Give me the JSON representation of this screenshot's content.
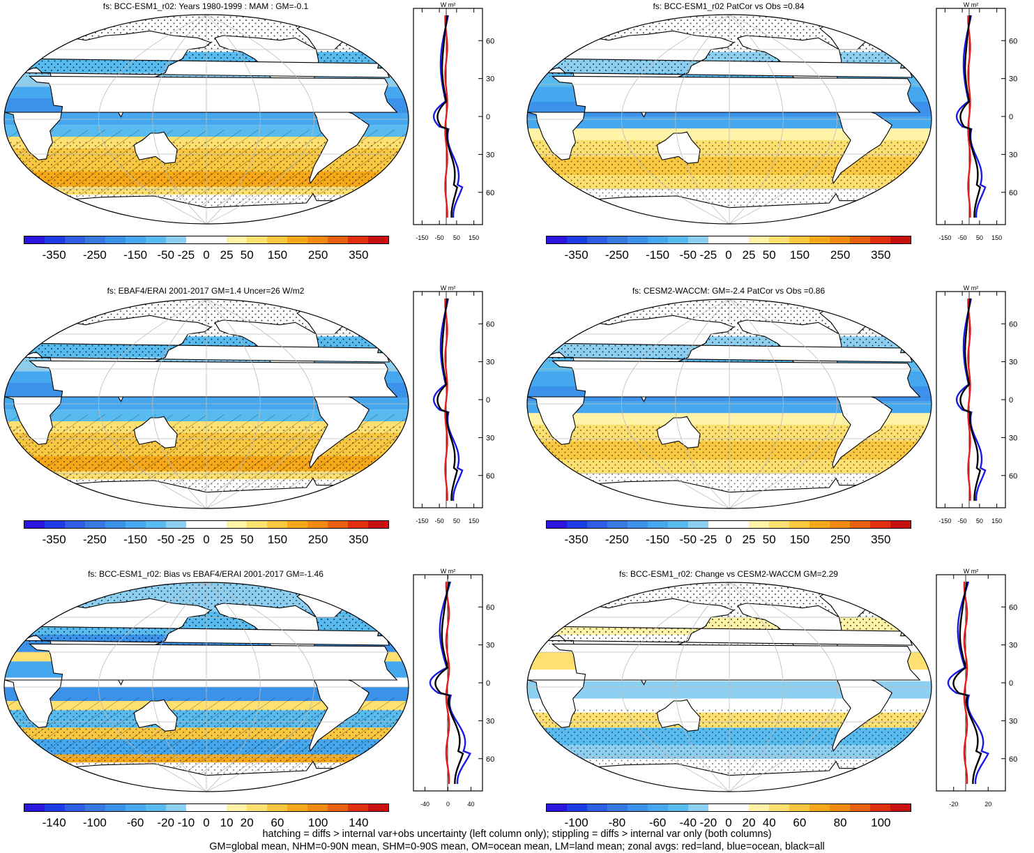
{
  "palettes": {
    "main": [
      "#2b16e0",
      "#1c3ce8",
      "#2f5ee6",
      "#3878e2",
      "#3c92e8",
      "#45a8ee",
      "#58bbf0",
      "#8ccff0",
      "#ffffff",
      "#ffffff",
      "#fff3a8",
      "#fde070",
      "#f9c840",
      "#f6a818",
      "#f08a10",
      "#e86010",
      "#e03010",
      "#c81010"
    ],
    "diff": [
      "#2b16e0",
      "#1c3ce8",
      "#2f5ee6",
      "#3878e2",
      "#3c92e8",
      "#45a8ee",
      "#58bbf0",
      "#8ccff0",
      "#ffffff",
      "#ffffff",
      "#fff3a8",
      "#fde070",
      "#f9c840",
      "#f6a818",
      "#f08a10",
      "#e86010",
      "#e03010",
      "#c81010"
    ]
  },
  "panels": [
    {
      "id": "p1",
      "title": "fs: BCC-ESM1_r02: Years 1980-1999 : MAM : GM=-0.1",
      "cbar_labels": [
        "-350",
        "-250",
        "-150",
        "-50",
        "-25",
        "0",
        "25",
        "50",
        "150",
        "250",
        "350"
      ],
      "zonal_xticks": [
        "-150",
        "-50",
        "50",
        "150"
      ],
      "zonal_yticks": [
        "60N",
        "30N",
        "0",
        "30S",
        "60S"
      ],
      "units": "W m²"
    },
    {
      "id": "p2",
      "title": "fs: BCC-ESM1_r02 PatCor vs Obs =0.84",
      "cbar_labels": [
        "-350",
        "-250",
        "-150",
        "-50",
        "-25",
        "0",
        "25",
        "50",
        "150",
        "250",
        "350"
      ],
      "zonal_xticks": [
        "-150",
        "-50",
        "50",
        "150"
      ],
      "zonal_yticks": [
        "60N",
        "30N",
        "0",
        "30S",
        "60S"
      ],
      "units": "W m²"
    },
    {
      "id": "p3",
      "title": "fs: EBAF4/ERAI 2001-2017 GM=1.4 Uncer=26 W/m2",
      "cbar_labels": [
        "-350",
        "-250",
        "-150",
        "-50",
        "-25",
        "0",
        "25",
        "50",
        "150",
        "250",
        "350"
      ],
      "zonal_xticks": [
        "-150",
        "-50",
        "50",
        "150"
      ],
      "zonal_yticks": [
        "60N",
        "30N",
        "0",
        "30S",
        "60S"
      ],
      "units": "W m²"
    },
    {
      "id": "p4",
      "title": "fs: CESM2-WACCM: GM=-2.4 PatCor vs Obs =0.86",
      "cbar_labels": [
        "-350",
        "-250",
        "-150",
        "-50",
        "-25",
        "0",
        "25",
        "50",
        "150",
        "250",
        "350"
      ],
      "zonal_xticks": [
        "-150",
        "-50",
        "50",
        "150"
      ],
      "zonal_yticks": [
        "60N",
        "30N",
        "0",
        "30S",
        "60S"
      ],
      "units": "W m²"
    },
    {
      "id": "p5",
      "title": "fs: BCC-ESM1_r02: Bias vs EBAF4/ERAI 2001-2017 GM=-1.46",
      "cbar_labels": [
        "-140",
        "-100",
        "-60",
        "-20",
        "-10",
        "0",
        "10",
        "20",
        "60",
        "100",
        "140"
      ],
      "zonal_xticks": [
        "-40",
        "0",
        "40"
      ],
      "zonal_yticks": [
        "60N",
        "30N",
        "0",
        "30S",
        "60S"
      ],
      "units": "W m²"
    },
    {
      "id": "p6",
      "title": "fs: BCC-ESM1_r02: Change vs CESM2-WACCM GM=2.29",
      "cbar_labels": [
        "-100",
        "-80",
        "-60",
        "-40",
        "-20",
        "0",
        "20",
        "40",
        "60",
        "80",
        "100"
      ],
      "zonal_xticks": [
        "-20",
        "20"
      ],
      "zonal_yticks": [
        "60N",
        "30N",
        "0",
        "30S",
        "60S"
      ],
      "units": "W m²"
    }
  ],
  "footer": {
    "line1": "hatching = diffs > internal var+obs uncertainty (left column only); stippling = diffs > internal var only (both columns)",
    "line2": "GM=global mean, NHM=0-90N mean, SHM=0-90S mean, OM=ocean mean, LM=land mean; zonal avgs: red=land, blue=ocean, black=all"
  }
}
